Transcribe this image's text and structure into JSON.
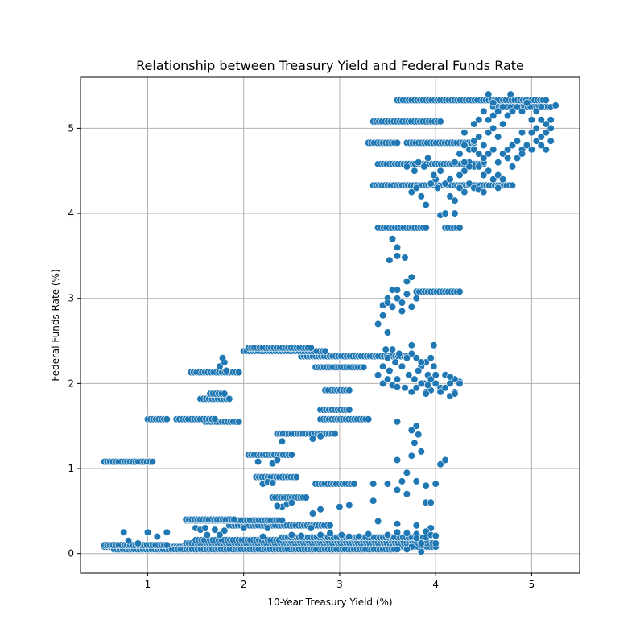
{
  "chart_data": {
    "type": "scatter",
    "title": "Relationship between Treasury Yield and Federal Funds Rate",
    "xlabel": "10-Year Treasury Yield (%)",
    "ylabel": "Federal Funds Rate (%)",
    "xlim": [
      0.3,
      5.5
    ],
    "ylim": [
      -0.23,
      5.6
    ],
    "xticks": [
      1,
      2,
      3,
      4,
      5
    ],
    "yticks": [
      0,
      1,
      2,
      3,
      4,
      5
    ],
    "grid": true,
    "marker_color": "#1f77b4",
    "bands": [
      {
        "y": 0.08,
        "x_from": 0.55,
        "x_to": 4.0
      },
      {
        "y": 0.12,
        "x_from": 1.4,
        "x_to": 4.0
      },
      {
        "y": 0.16,
        "x_from": 1.5,
        "x_to": 3.9
      },
      {
        "y": 0.19,
        "x_from": 2.4,
        "x_to": 3.9
      },
      {
        "y": 0.05,
        "x_from": 0.65,
        "x_to": 3.6
      },
      {
        "y": 0.1,
        "x_from": 0.55,
        "x_to": 1.2
      },
      {
        "y": 0.33,
        "x_from": 1.85,
        "x_to": 2.9
      },
      {
        "y": 0.39,
        "x_from": 1.4,
        "x_to": 2.4
      },
      {
        "y": 0.4,
        "x_from": 1.4,
        "x_to": 1.9
      },
      {
        "y": 0.66,
        "x_from": 2.3,
        "x_to": 2.65
      },
      {
        "y": 0.82,
        "x_from": 2.75,
        "x_to": 3.15
      },
      {
        "y": 0.9,
        "x_from": 2.13,
        "x_to": 2.55
      },
      {
        "y": 1.08,
        "x_from": 0.55,
        "x_to": 1.05
      },
      {
        "y": 1.16,
        "x_from": 2.05,
        "x_to": 2.5
      },
      {
        "y": 1.41,
        "x_from": 2.35,
        "x_to": 2.95
      },
      {
        "y": 1.55,
        "x_from": 1.6,
        "x_to": 1.95
      },
      {
        "y": 1.58,
        "x_from": 1.0,
        "x_to": 1.2
      },
      {
        "y": 1.58,
        "x_from": 1.3,
        "x_to": 1.7
      },
      {
        "y": 1.58,
        "x_from": 2.8,
        "x_to": 3.3
      },
      {
        "y": 1.69,
        "x_from": 2.8,
        "x_to": 3.1
      },
      {
        "y": 1.82,
        "x_from": 1.55,
        "x_to": 1.85
      },
      {
        "y": 1.88,
        "x_from": 1.65,
        "x_to": 1.8
      },
      {
        "y": 1.92,
        "x_from": 2.85,
        "x_to": 3.1
      },
      {
        "y": 2.13,
        "x_from": 1.45,
        "x_to": 1.95
      },
      {
        "y": 2.19,
        "x_from": 2.75,
        "x_to": 3.25
      },
      {
        "y": 2.32,
        "x_from": 2.6,
        "x_to": 3.7
      },
      {
        "y": 2.38,
        "x_from": 2.0,
        "x_to": 2.85
      },
      {
        "y": 2.42,
        "x_from": 2.05,
        "x_to": 2.7
      },
      {
        "y": 3.08,
        "x_from": 3.8,
        "x_to": 4.25
      },
      {
        "y": 3.83,
        "x_from": 3.4,
        "x_to": 3.9
      },
      {
        "y": 3.83,
        "x_from": 4.1,
        "x_to": 4.25
      },
      {
        "y": 4.33,
        "x_from": 3.35,
        "x_to": 4.8
      },
      {
        "y": 4.58,
        "x_from": 3.4,
        "x_to": 4.5
      },
      {
        "y": 4.83,
        "x_from": 3.3,
        "x_to": 3.6
      },
      {
        "y": 4.83,
        "x_from": 3.7,
        "x_to": 4.4
      },
      {
        "y": 5.08,
        "x_from": 3.35,
        "x_to": 4.05
      },
      {
        "y": 5.33,
        "x_from": 3.6,
        "x_to": 5.15
      },
      {
        "y": 5.25,
        "x_from": 4.6,
        "x_to": 5.2
      }
    ],
    "points": [
      [
        3.5,
        0.82
      ],
      [
        3.35,
        0.82
      ],
      [
        4.0,
        0.82
      ],
      [
        3.35,
        0.62
      ],
      [
        3.9,
        0.6
      ],
      [
        3.0,
        0.55
      ],
      [
        3.1,
        0.57
      ],
      [
        2.8,
        0.52
      ],
      [
        2.72,
        0.47
      ],
      [
        3.6,
        1.1
      ],
      [
        3.7,
        0.95
      ],
      [
        3.75,
        1.15
      ],
      [
        3.85,
        1.2
      ],
      [
        3.8,
        1.5
      ],
      [
        3.75,
        1.45
      ],
      [
        3.82,
        1.4
      ],
      [
        3.78,
        1.3
      ],
      [
        3.6,
        1.55
      ],
      [
        4.05,
        1.05
      ],
      [
        4.1,
        1.1
      ],
      [
        3.7,
        0.7
      ],
      [
        3.6,
        0.75
      ],
      [
        3.8,
        0.85
      ],
      [
        3.9,
        0.8
      ],
      [
        3.95,
        0.6
      ],
      [
        3.65,
        0.85
      ],
      [
        0.75,
        0.25
      ],
      [
        1.0,
        0.25
      ],
      [
        1.2,
        0.25
      ],
      [
        1.1,
        0.2
      ],
      [
        0.8,
        0.15
      ],
      [
        0.9,
        0.12
      ],
      [
        1.8,
        0.27
      ],
      [
        2.0,
        0.3
      ],
      [
        2.25,
        0.3
      ],
      [
        2.7,
        0.3
      ],
      [
        3.6,
        0.35
      ],
      [
        3.8,
        0.33
      ],
      [
        3.4,
        0.38
      ],
      [
        3.95,
        0.3
      ],
      [
        3.85,
        0.02
      ],
      [
        3.4,
        2.7
      ],
      [
        3.45,
        2.8
      ],
      [
        3.5,
        2.6
      ],
      [
        3.55,
        2.9
      ],
      [
        3.6,
        3.0
      ],
      [
        3.65,
        2.95
      ],
      [
        3.7,
        3.05
      ],
      [
        3.75,
        2.9
      ],
      [
        3.8,
        3.0
      ],
      [
        3.5,
        3.0
      ],
      [
        3.55,
        3.1
      ],
      [
        3.7,
        3.2
      ],
      [
        3.6,
        3.1
      ],
      [
        3.65,
        2.85
      ],
      [
        3.52,
        3.45
      ],
      [
        3.6,
        3.5
      ],
      [
        3.68,
        3.48
      ],
      [
        3.6,
        3.6
      ],
      [
        3.55,
        3.7
      ],
      [
        3.75,
        3.25
      ],
      [
        3.4,
        2.1
      ],
      [
        3.45,
        2.2
      ],
      [
        3.5,
        2.3
      ],
      [
        3.52,
        2.15
      ],
      [
        3.55,
        2.4
      ],
      [
        3.58,
        2.25
      ],
      [
        3.6,
        2.05
      ],
      [
        3.62,
        2.35
      ],
      [
        3.65,
        2.2
      ],
      [
        3.45,
        2.0
      ],
      [
        3.5,
        2.05
      ],
      [
        3.48,
        2.4
      ],
      [
        3.55,
        1.98
      ],
      [
        3.75,
        2.35
      ],
      [
        3.8,
        2.3
      ],
      [
        3.85,
        2.2
      ],
      [
        3.9,
        2.25
      ],
      [
        3.72,
        2.1
      ],
      [
        3.78,
        2.05
      ],
      [
        3.82,
        2.15
      ],
      [
        3.88,
        2.0
      ],
      [
        3.92,
        2.1
      ],
      [
        3.98,
        2.45
      ],
      [
        3.7,
        2.3
      ],
      [
        3.75,
        1.9
      ],
      [
        3.8,
        1.95
      ],
      [
        3.85,
        2.0
      ],
      [
        3.9,
        1.9
      ],
      [
        3.95,
        2.05
      ],
      [
        4.0,
        2.0
      ],
      [
        4.05,
        1.95
      ],
      [
        4.1,
        2.1
      ],
      [
        4.15,
        2.0
      ],
      [
        4.2,
        1.9
      ],
      [
        4.25,
        2.02
      ],
      [
        4.0,
        2.1
      ],
      [
        4.05,
        1.9
      ],
      [
        4.1,
        1.95
      ],
      [
        4.15,
        1.85
      ],
      [
        3.95,
        1.92
      ],
      [
        3.9,
        1.88
      ],
      [
        4.2,
        2.05
      ],
      [
        3.75,
        4.25
      ],
      [
        3.8,
        4.3
      ],
      [
        3.85,
        4.2
      ],
      [
        3.9,
        4.1
      ],
      [
        3.95,
        4.35
      ],
      [
        4.0,
        4.4
      ],
      [
        3.78,
        4.5
      ],
      [
        3.82,
        4.6
      ],
      [
        3.88,
        4.55
      ],
      [
        3.92,
        4.65
      ],
      [
        3.98,
        4.45
      ],
      [
        4.05,
        4.5
      ],
      [
        4.02,
        4.3
      ],
      [
        3.7,
        4.55
      ],
      [
        4.05,
        3.98
      ],
      [
        4.1,
        4.0
      ],
      [
        4.2,
        4.0
      ],
      [
        4.25,
        4.3
      ],
      [
        4.3,
        4.25
      ],
      [
        4.35,
        4.35
      ],
      [
        4.4,
        4.3
      ],
      [
        4.45,
        4.28
      ],
      [
        4.5,
        4.25
      ],
      [
        4.15,
        4.2
      ],
      [
        4.2,
        4.15
      ],
      [
        4.1,
        4.35
      ],
      [
        4.3,
        4.5
      ],
      [
        4.35,
        4.6
      ],
      [
        4.4,
        4.55
      ],
      [
        4.2,
        4.6
      ],
      [
        4.25,
        4.7
      ],
      [
        4.3,
        4.8
      ],
      [
        4.35,
        4.75
      ],
      [
        4.4,
        4.85
      ],
      [
        4.45,
        4.9
      ],
      [
        4.5,
        4.8
      ],
      [
        4.55,
        4.95
      ],
      [
        4.6,
        5.0
      ],
      [
        4.65,
        4.9
      ],
      [
        4.7,
        5.05
      ],
      [
        4.5,
        4.6
      ],
      [
        4.55,
        4.5
      ],
      [
        4.6,
        4.4
      ],
      [
        4.65,
        4.45
      ],
      [
        4.7,
        4.7
      ],
      [
        4.6,
        4.75
      ],
      [
        4.55,
        4.7
      ],
      [
        4.65,
        4.6
      ],
      [
        4.45,
        4.55
      ],
      [
        4.4,
        4.75
      ],
      [
        4.75,
        4.75
      ],
      [
        4.8,
        4.8
      ],
      [
        4.85,
        4.85
      ],
      [
        4.9,
        4.75
      ],
      [
        4.95,
        4.8
      ],
      [
        5.0,
        4.75
      ],
      [
        5.05,
        4.85
      ],
      [
        5.1,
        4.9
      ],
      [
        5.15,
        4.95
      ],
      [
        5.2,
        5.0
      ],
      [
        5.1,
        4.8
      ],
      [
        5.05,
        5.0
      ],
      [
        5.15,
        5.05
      ],
      [
        5.2,
        5.1
      ],
      [
        5.0,
        4.95
      ],
      [
        4.9,
        4.95
      ],
      [
        5.1,
        5.1
      ],
      [
        5.2,
        4.85
      ],
      [
        5.15,
        4.75
      ],
      [
        4.5,
        5.2
      ],
      [
        4.55,
        5.1
      ],
      [
        4.6,
        5.15
      ],
      [
        4.65,
        5.2
      ],
      [
        4.7,
        5.25
      ],
      [
        4.75,
        5.15
      ],
      [
        4.8,
        5.2
      ],
      [
        4.85,
        5.25
      ],
      [
        4.9,
        5.2
      ],
      [
        4.95,
        5.3
      ],
      [
        4.6,
        5.3
      ],
      [
        4.55,
        5.4
      ],
      [
        4.78,
        5.4
      ],
      [
        4.4,
        5.05
      ],
      [
        4.45,
        5.1
      ],
      [
        5.0,
        5.1
      ],
      [
        5.05,
        5.2
      ],
      [
        5.1,
        5.25
      ],
      [
        5.2,
        5.25
      ],
      [
        5.25,
        5.27
      ],
      [
        4.3,
        4.95
      ],
      [
        4.4,
        4.85
      ],
      [
        4.45,
        4.7
      ],
      [
        4.5,
        4.65
      ],
      [
        4.35,
        4.55
      ],
      [
        4.25,
        4.45
      ],
      [
        4.15,
        4.4
      ],
      [
        4.3,
        4.6
      ],
      [
        4.5,
        4.45
      ],
      [
        4.65,
        4.3
      ],
      [
        4.7,
        4.4
      ],
      [
        4.8,
        4.55
      ],
      [
        4.85,
        4.65
      ],
      [
        4.9,
        4.7
      ],
      [
        4.75,
        4.65
      ],
      [
        1.75,
        2.2
      ],
      [
        1.8,
        2.25
      ],
      [
        1.78,
        2.3
      ],
      [
        1.82,
        2.15
      ],
      [
        1.5,
        0.3
      ],
      [
        1.55,
        0.28
      ],
      [
        1.6,
        0.3
      ],
      [
        1.62,
        0.22
      ],
      [
        1.7,
        0.28
      ],
      [
        1.75,
        0.22
      ],
      [
        2.4,
        0.55
      ],
      [
        2.45,
        0.58
      ],
      [
        2.35,
        0.56
      ],
      [
        2.72,
        1.35
      ],
      [
        2.8,
        1.38
      ],
      [
        2.4,
        1.32
      ],
      [
        2.5,
        0.6
      ],
      [
        2.15,
        1.08
      ],
      [
        2.3,
        1.06
      ],
      [
        2.35,
        1.1
      ],
      [
        2.2,
        0.82
      ],
      [
        2.25,
        0.84
      ],
      [
        2.3,
        0.83
      ],
      [
        3.45,
        2.92
      ],
      [
        3.5,
        2.95
      ],
      [
        3.75,
        2.45
      ],
      [
        3.85,
        2.25
      ],
      [
        3.95,
        2.3
      ],
      [
        4.25,
        2.0
      ],
      [
        4.2,
        1.88
      ],
      [
        4.15,
        2.08
      ],
      [
        3.98,
        2.2
      ],
      [
        3.92,
        1.98
      ],
      [
        3.68,
        1.95
      ],
      [
        3.6,
        1.96
      ],
      [
        3.02,
        0.22
      ],
      [
        3.1,
        0.2
      ],
      [
        2.9,
        0.24
      ],
      [
        2.8,
        0.22
      ],
      [
        2.6,
        0.21
      ],
      [
        2.5,
        0.22
      ],
      [
        2.2,
        0.2
      ],
      [
        3.2,
        0.2
      ],
      [
        3.3,
        0.23
      ],
      [
        3.5,
        0.22
      ],
      [
        3.6,
        0.25
      ],
      [
        3.7,
        0.24
      ],
      [
        3.8,
        0.23
      ],
      [
        3.9,
        0.26
      ],
      [
        3.95,
        0.22
      ],
      [
        4.0,
        0.21
      ],
      [
        3.85,
        0.12
      ],
      [
        3.75,
        0.08
      ],
      [
        3.7,
        0.05
      ],
      [
        3.8,
        0.18
      ]
    ]
  }
}
